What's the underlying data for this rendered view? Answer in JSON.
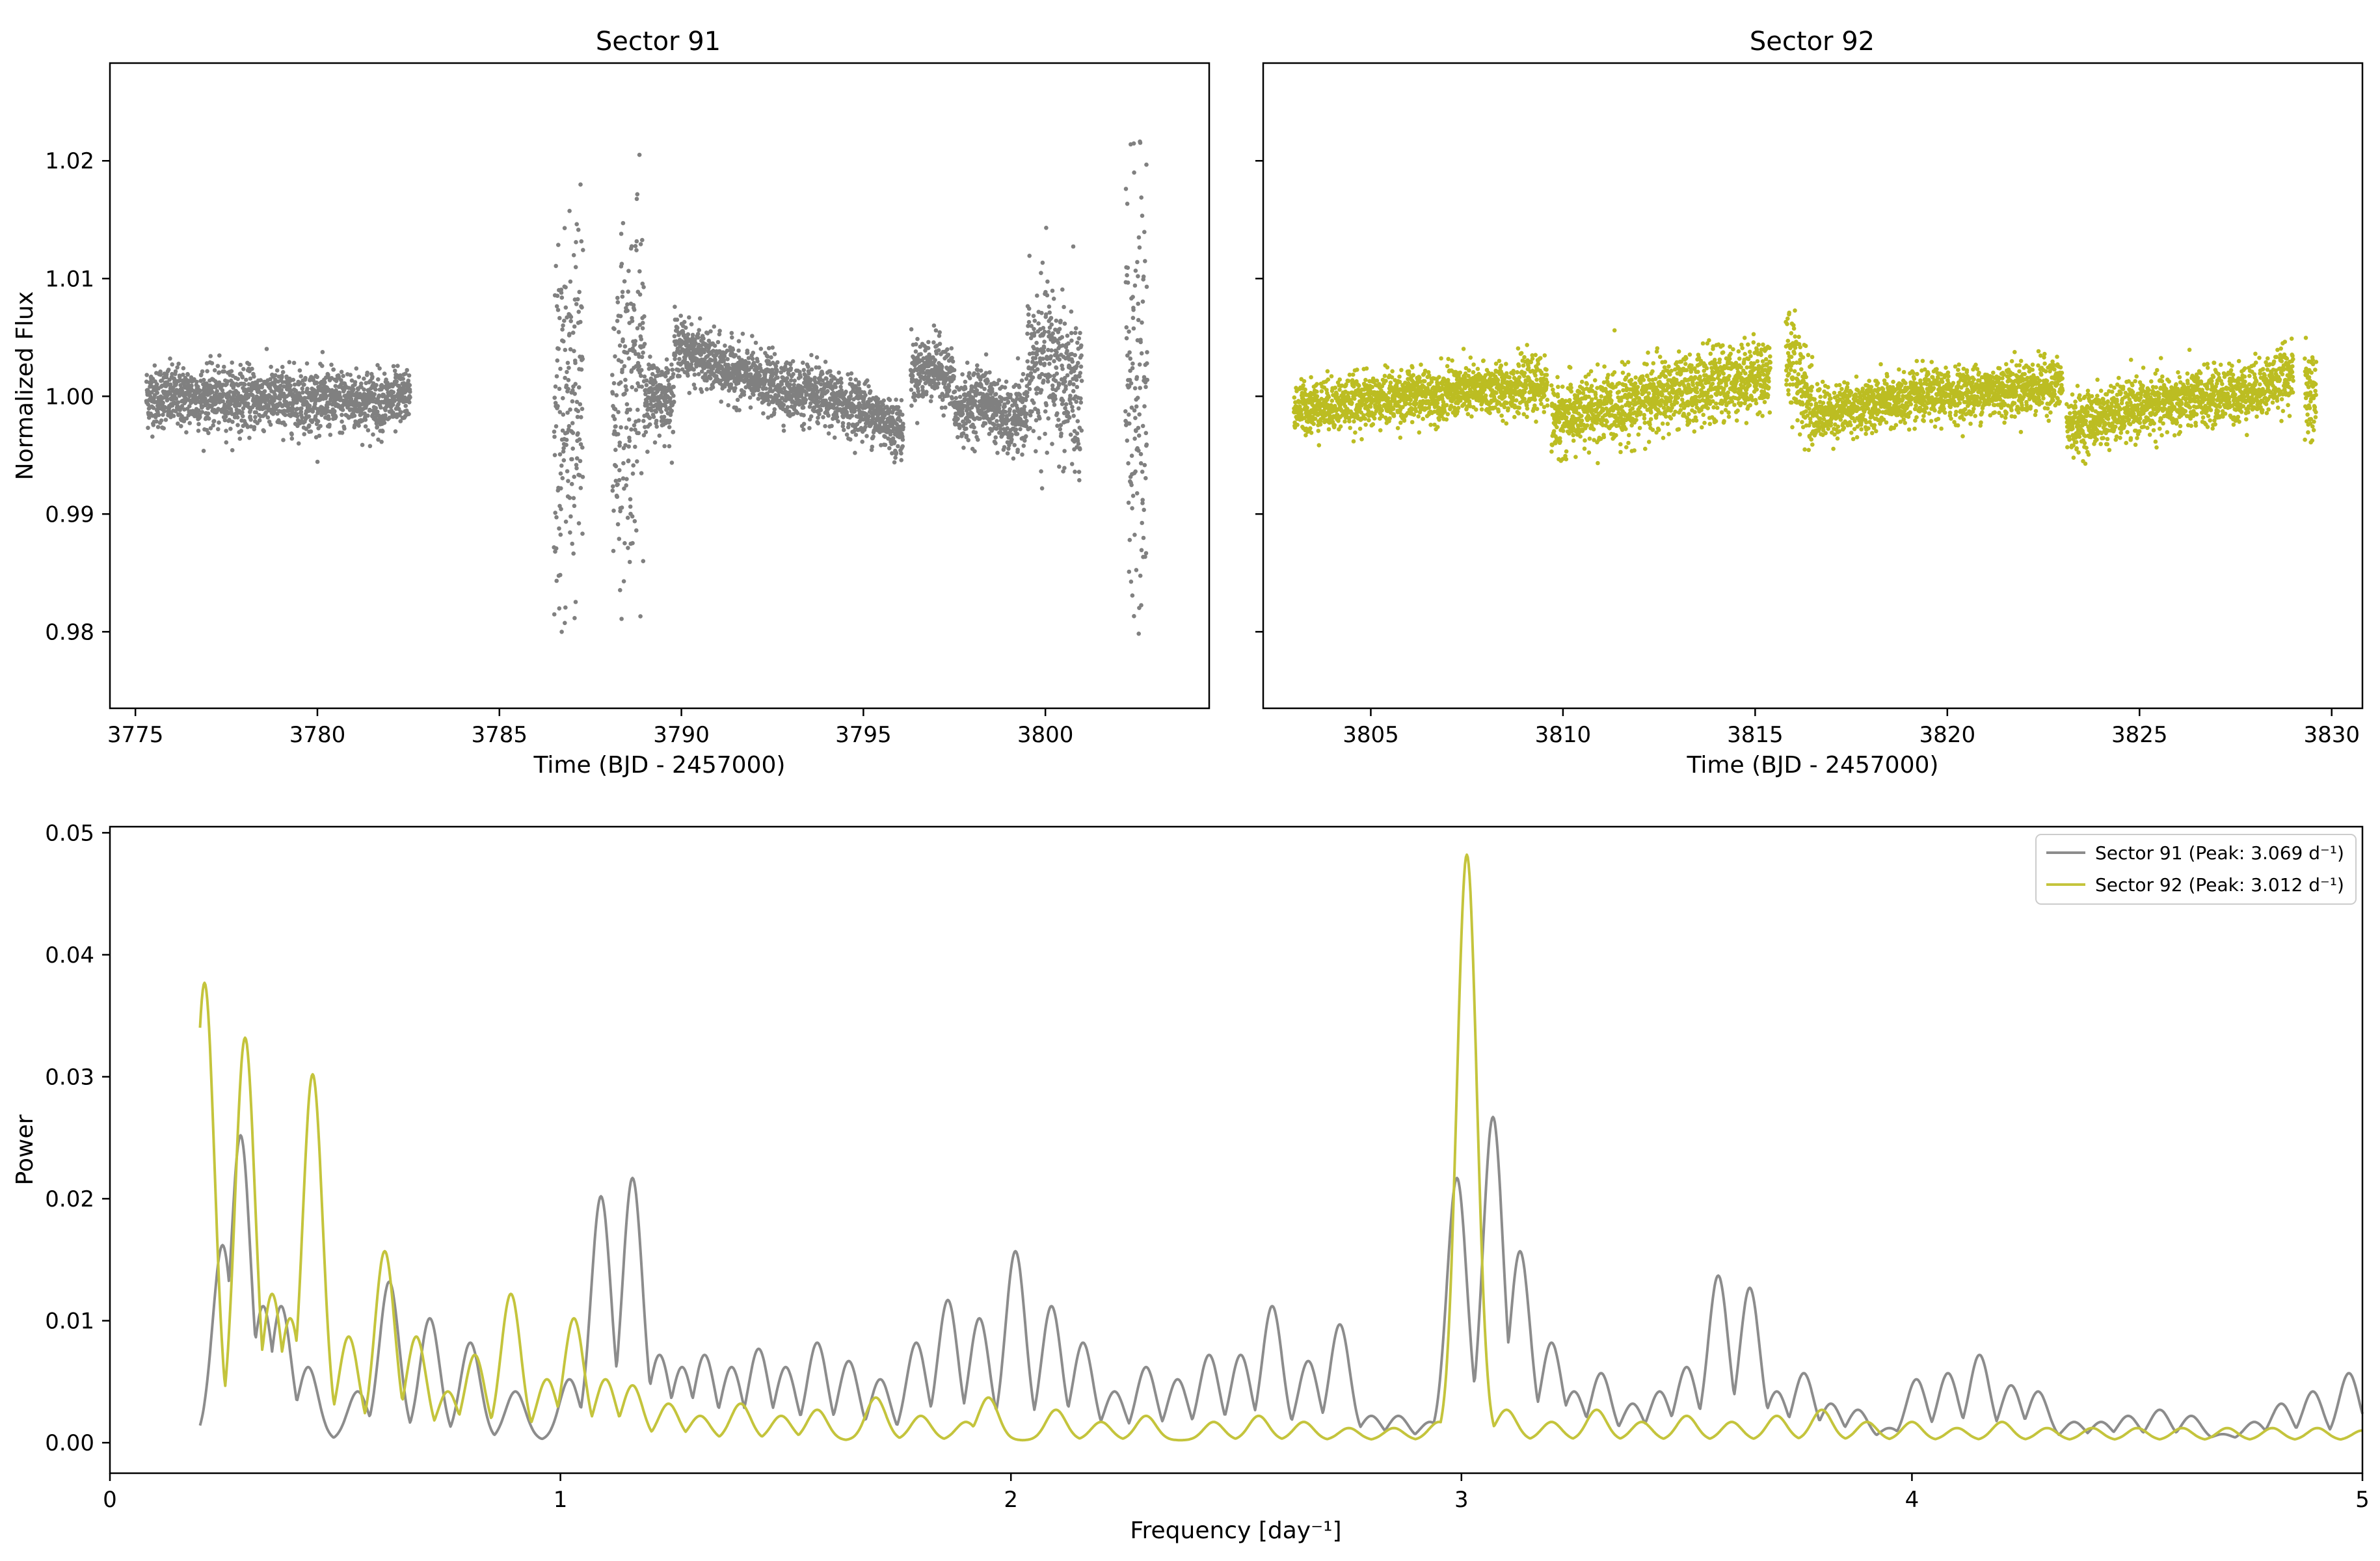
{
  "chart_data": [
    {
      "type": "scatter",
      "id": "lc91",
      "title": "Sector 91",
      "xlabel": "Time (BJD - 2457000)",
      "ylabel": "Normalized Flux",
      "xlim": [
        3774.3,
        3804.5
      ],
      "ylim": [
        0.9735,
        1.0283
      ],
      "xticks": [
        "3775",
        "3780",
        "3785",
        "3790",
        "3795",
        "3800"
      ],
      "yticks": [
        "0.98",
        "0.99",
        "1.00",
        "1.01",
        "1.02"
      ],
      "color": "#808080",
      "segments": [
        {
          "start": 3775.3,
          "end": 3782.3,
          "base": [
            [
              3775.3,
              1.0
            ],
            [
              3782.3,
              0.9995
            ]
          ],
          "scatter": 0.0013
        },
        {
          "start": 3782.3,
          "end": 3782.55,
          "base": [
            [
              3782.3,
              1.0
            ],
            [
              3782.55,
              1.0
            ]
          ],
          "scatter": 0.001
        },
        {
          "start": 3786.5,
          "end": 3787.3,
          "base": [
            [
              3786.5,
              0.997
            ],
            [
              3787.3,
              1.0
            ]
          ],
          "scatter": 0.008
        },
        {
          "start": 3788.1,
          "end": 3789.0,
          "base": [
            [
              3788.1,
              0.998
            ],
            [
              3789.0,
              1.003
            ]
          ],
          "scatter": 0.007
        },
        {
          "start": 3789.0,
          "end": 3789.8,
          "base": [
            [
              3789.0,
              1.0
            ],
            [
              3789.8,
              1.0
            ]
          ],
          "scatter": 0.0015
        },
        {
          "start": 3789.8,
          "end": 3796.1,
          "base": [
            [
              3789.8,
              1.0045
            ],
            [
              3791.0,
              1.0025
            ],
            [
              3793.0,
              1.0005
            ],
            [
              3795.0,
              0.999
            ],
            [
              3796.1,
              0.997
            ]
          ],
          "scatter": 0.0012
        },
        {
          "start": 3796.3,
          "end": 3797.5,
          "base": [
            [
              3796.3,
              1.002
            ],
            [
              3797.0,
              1.0025
            ],
            [
              3797.5,
              1.001
            ]
          ],
          "scatter": 0.0013
        },
        {
          "start": 3797.5,
          "end": 3799.5,
          "base": [
            [
              3797.5,
              0.9985
            ],
            [
              3798.3,
              1.0
            ],
            [
              3799.0,
              0.9975
            ],
            [
              3799.5,
              0.999
            ]
          ],
          "scatter": 0.0014
        },
        {
          "start": 3799.5,
          "end": 3801.0,
          "base": [
            [
              3799.5,
              1.002
            ],
            [
              3800.2,
              1.003
            ],
            [
              3801.0,
              0.999
            ]
          ],
          "scatter": 0.0035
        },
        {
          "start": 3802.2,
          "end": 3802.8,
          "base": [
            [
              3802.2,
              1.0
            ],
            [
              3802.8,
              1.0
            ]
          ],
          "scatter": 0.009
        }
      ]
    },
    {
      "type": "scatter",
      "id": "lc92",
      "title": "Sector 92",
      "xlabel": "Time (BJD - 2457000)",
      "xlim": [
        3802.2,
        3830.8
      ],
      "ylim": [
        0.9735,
        1.0283
      ],
      "xticks": [
        "3805",
        "3810",
        "3815",
        "3820",
        "3825",
        "3830"
      ],
      "color": "#bcbd22",
      "segments": [
        {
          "start": 3803.0,
          "end": 3809.6,
          "base": [
            [
              3803.0,
              0.999
            ],
            [
              3806.0,
              1.0
            ],
            [
              3809.6,
              1.001
            ]
          ],
          "scatter": 0.0011
        },
        {
          "start": 3809.7,
          "end": 3815.4,
          "base": [
            [
              3809.7,
              0.998
            ],
            [
              3812.5,
              1.0
            ],
            [
              3815.4,
              1.002
            ]
          ],
          "scatter": 0.0015
        },
        {
          "start": 3815.8,
          "end": 3816.5,
          "base": [
            [
              3815.8,
              1.004
            ],
            [
              3816.5,
              0.999
            ]
          ],
          "scatter": 0.002
        },
        {
          "start": 3816.5,
          "end": 3823.0,
          "base": [
            [
              3816.5,
              0.9985
            ],
            [
              3819.5,
              1.0
            ],
            [
              3823.0,
              1.001
            ]
          ],
          "scatter": 0.0011
        },
        {
          "start": 3823.1,
          "end": 3829.0,
          "base": [
            [
              3823.1,
              0.9975
            ],
            [
              3825.0,
              0.999
            ],
            [
              3828.0,
              1.0005
            ],
            [
              3829.0,
              1.002
            ]
          ],
          "scatter": 0.0012
        },
        {
          "start": 3829.3,
          "end": 3829.6,
          "base": [
            [
              3829.3,
              1.0
            ],
            [
              3829.6,
              1.0
            ]
          ],
          "scatter": 0.002
        }
      ]
    },
    {
      "type": "line",
      "id": "pg",
      "xlabel": "Frequency [day⁻¹]",
      "ylabel": "Power",
      "xlim": [
        0,
        5
      ],
      "ylim": [
        -0.0025,
        0.0505
      ],
      "xticks": [
        "0",
        "1",
        "2",
        "3",
        "4",
        "5"
      ],
      "yticks": [
        "0.00",
        "0.01",
        "0.02",
        "0.03",
        "0.04",
        "0.05"
      ],
      "legend_position": "top-right",
      "series": [
        {
          "name": "Sector 91 (Peak: 3.069 d⁻¹)",
          "color": "#8c8c8c",
          "x_range": [
            0.2,
            5.0
          ],
          "peaks": [
            [
              0.21,
              0.001
            ],
            [
              0.25,
              0.016
            ],
            [
              0.29,
              0.025
            ],
            [
              0.34,
              0.011
            ],
            [
              0.38,
              0.011
            ],
            [
              0.44,
              0.006
            ],
            [
              0.55,
              0.004
            ],
            [
              0.62,
              0.013
            ],
            [
              0.71,
              0.01
            ],
            [
              0.8,
              0.008
            ],
            [
              0.9,
              0.004
            ],
            [
              1.02,
              0.005
            ],
            [
              1.09,
              0.02
            ],
            [
              1.16,
              0.0215
            ],
            [
              1.22,
              0.007
            ],
            [
              1.27,
              0.006
            ],
            [
              1.32,
              0.007
            ],
            [
              1.38,
              0.006
            ],
            [
              1.44,
              0.0075
            ],
            [
              1.5,
              0.006
            ],
            [
              1.57,
              0.008
            ],
            [
              1.64,
              0.0065
            ],
            [
              1.71,
              0.005
            ],
            [
              1.79,
              0.008
            ],
            [
              1.86,
              0.0115
            ],
            [
              1.93,
              0.01
            ],
            [
              2.01,
              0.0155
            ],
            [
              2.09,
              0.011
            ],
            [
              2.16,
              0.008
            ],
            [
              2.23,
              0.004
            ],
            [
              2.3,
              0.006
            ],
            [
              2.37,
              0.005
            ],
            [
              2.44,
              0.007
            ],
            [
              2.51,
              0.007
            ],
            [
              2.58,
              0.011
            ],
            [
              2.66,
              0.0065
            ],
            [
              2.73,
              0.0095
            ],
            [
              2.8,
              0.002
            ],
            [
              2.86,
              0.002
            ],
            [
              2.93,
              0.0015
            ],
            [
              2.99,
              0.0215
            ],
            [
              3.07,
              0.0265
            ],
            [
              3.13,
              0.0155
            ],
            [
              3.2,
              0.008
            ],
            [
              3.25,
              0.004
            ],
            [
              3.31,
              0.0055
            ],
            [
              3.38,
              0.003
            ],
            [
              3.44,
              0.004
            ],
            [
              3.5,
              0.006
            ],
            [
              3.57,
              0.0135
            ],
            [
              3.64,
              0.0125
            ],
            [
              3.7,
              0.004
            ],
            [
              3.76,
              0.0055
            ],
            [
              3.82,
              0.003
            ],
            [
              3.88,
              0.0025
            ],
            [
              3.95,
              0.001
            ],
            [
              4.01,
              0.005
            ],
            [
              4.08,
              0.0055
            ],
            [
              4.15,
              0.007
            ],
            [
              4.22,
              0.0045
            ],
            [
              4.28,
              0.004
            ],
            [
              4.36,
              0.0015
            ],
            [
              4.42,
              0.0015
            ],
            [
              4.48,
              0.002
            ],
            [
              4.55,
              0.0025
            ],
            [
              4.62,
              0.002
            ],
            [
              4.69,
              0.0005
            ],
            [
              4.76,
              0.0015
            ],
            [
              4.82,
              0.003
            ],
            [
              4.89,
              0.004
            ],
            [
              4.97,
              0.0055
            ]
          ]
        },
        {
          "name": "Sector 92 (Peak: 3.012 d⁻¹)",
          "color": "#c4c43c",
          "x_range": [
            0.2,
            5.0
          ],
          "peaks": [
            [
              0.21,
              0.0375
            ],
            [
              0.3,
              0.033
            ],
            [
              0.36,
              0.012
            ],
            [
              0.4,
              0.01
            ],
            [
              0.45,
              0.03
            ],
            [
              0.53,
              0.0085
            ],
            [
              0.61,
              0.0155
            ],
            [
              0.68,
              0.0085
            ],
            [
              0.75,
              0.004
            ],
            [
              0.81,
              0.007
            ],
            [
              0.89,
              0.012
            ],
            [
              0.97,
              0.005
            ],
            [
              1.03,
              0.01
            ],
            [
              1.1,
              0.005
            ],
            [
              1.16,
              0.0045
            ],
            [
              1.24,
              0.003
            ],
            [
              1.31,
              0.002
            ],
            [
              1.4,
              0.003
            ],
            [
              1.49,
              0.002
            ],
            [
              1.57,
              0.0025
            ],
            [
              1.7,
              0.0035
            ],
            [
              1.8,
              0.002
            ],
            [
              1.9,
              0.0015
            ],
            [
              1.95,
              0.0035
            ],
            [
              2.1,
              0.0025
            ],
            [
              2.2,
              0.0015
            ],
            [
              2.3,
              0.002
            ],
            [
              2.45,
              0.0015
            ],
            [
              2.55,
              0.002
            ],
            [
              2.65,
              0.0015
            ],
            [
              2.75,
              0.001
            ],
            [
              2.85,
              0.001
            ],
            [
              2.95,
              0.0015
            ],
            [
              3.012,
              0.048
            ],
            [
              3.1,
              0.0025
            ],
            [
              3.2,
              0.0015
            ],
            [
              3.3,
              0.0025
            ],
            [
              3.4,
              0.0015
            ],
            [
              3.5,
              0.002
            ],
            [
              3.6,
              0.0015
            ],
            [
              3.7,
              0.002
            ],
            [
              3.8,
              0.0025
            ],
            [
              3.9,
              0.0015
            ],
            [
              4.0,
              0.0015
            ],
            [
              4.1,
              0.001
            ],
            [
              4.2,
              0.0015
            ],
            [
              4.3,
              0.001
            ],
            [
              4.4,
              0.001
            ],
            [
              4.5,
              0.001
            ],
            [
              4.6,
              0.001
            ],
            [
              4.7,
              0.001
            ],
            [
              4.8,
              0.001
            ],
            [
              4.9,
              0.001
            ],
            [
              5.0,
              0.0008
            ]
          ]
        }
      ]
    }
  ]
}
